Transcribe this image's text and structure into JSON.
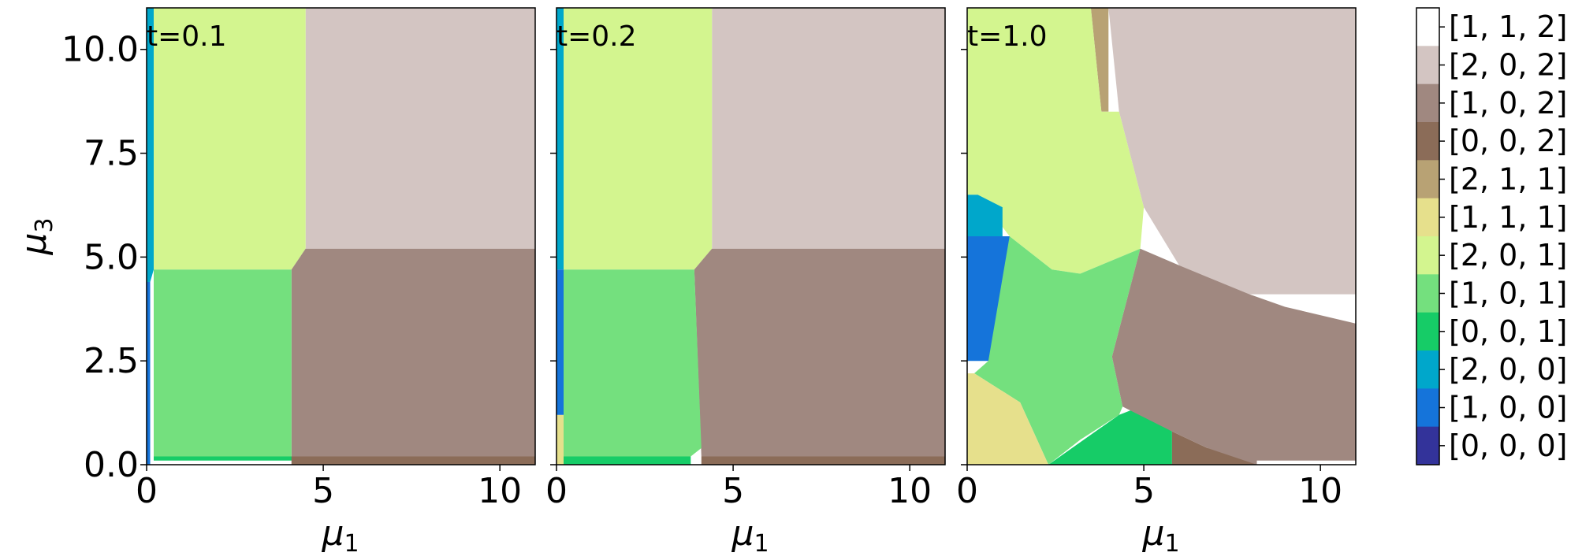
{
  "chart_data": {
    "type": "heatmap",
    "panels": [
      {
        "annotation": "t=0.1"
      },
      {
        "annotation": "t=0.2"
      },
      {
        "annotation": "t=1.0"
      }
    ],
    "xlabel": "μ",
    "xlabel_sub": "1",
    "ylabel": "μ",
    "ylabel_sub": "3",
    "xlim": [
      0,
      11
    ],
    "ylim": [
      0,
      11
    ],
    "xticks": [
      "0",
      "5",
      "10"
    ],
    "yticks": [
      "0.0",
      "2.5",
      "5.0",
      "7.5",
      "10.0"
    ],
    "legend": [
      {
        "label": "[1, 1, 2]",
        "color": "#ffffff"
      },
      {
        "label": "[2, 0, 2]",
        "color": "#d3c5c2"
      },
      {
        "label": "[1, 0, 2]",
        "color": "#a08880"
      },
      {
        "label": "[0, 0, 2]",
        "color": "#8b6c58"
      },
      {
        "label": "[2, 1, 1]",
        "color": "#b8a274"
      },
      {
        "label": "[1, 1, 1]",
        "color": "#e6e08c"
      },
      {
        "label": "[2, 0, 1]",
        "color": "#d3f58f"
      },
      {
        "label": "[1, 0, 1]",
        "color": "#74e07e"
      },
      {
        "label": "[0, 0, 1]",
        "color": "#16cc67"
      },
      {
        "label": "[2, 0, 0]",
        "color": "#00a7cb"
      },
      {
        "label": "[1, 0, 0]",
        "color": "#1574da"
      },
      {
        "label": "[0, 0, 0]",
        "color": "#33339a"
      }
    ],
    "regions": [
      [
        {
          "state": "[2, 0, 2]",
          "poly": [
            [
              4.5,
              11
            ],
            [
              11,
              11
            ],
            [
              11,
              5.2
            ],
            [
              4.5,
              5.2
            ]
          ]
        },
        {
          "state": "[2, 0, 1]",
          "poly": [
            [
              0.2,
              11
            ],
            [
              4.5,
              11
            ],
            [
              4.5,
              5.2
            ],
            [
              4.1,
              4.7
            ],
            [
              0.2,
              4.7
            ]
          ]
        },
        {
          "state": "[1, 0, 2]",
          "poly": [
            [
              4.5,
              5.2
            ],
            [
              11,
              5.2
            ],
            [
              11,
              0.2
            ],
            [
              4.1,
              0.2
            ],
            [
              4.1,
              4.7
            ]
          ]
        },
        {
          "state": "[1, 0, 1]",
          "poly": [
            [
              0.2,
              4.7
            ],
            [
              4.1,
              4.7
            ],
            [
              4.1,
              0.2
            ],
            [
              0.2,
              0.2
            ]
          ]
        },
        {
          "state": "[0, 0, 1]",
          "poly": [
            [
              0.2,
              0.2
            ],
            [
              4.4,
              0.2
            ],
            [
              4.4,
              0.1
            ],
            [
              0.2,
              0.1
            ]
          ]
        },
        {
          "state": "[0, 0, 2]",
          "poly": [
            [
              4.1,
              0.2
            ],
            [
              11,
              0.2
            ],
            [
              11,
              0
            ],
            [
              4.1,
              0
            ]
          ]
        },
        {
          "state": "[2, 0, 0]",
          "poly": [
            [
              0,
              11
            ],
            [
              0.2,
              11
            ],
            [
              0.2,
              4.7
            ],
            [
              0.1,
              4.4
            ],
            [
              0,
              4.4
            ]
          ]
        },
        {
          "state": "[1, 0, 0]",
          "poly": [
            [
              0,
              4.4
            ],
            [
              0.1,
              4.4
            ],
            [
              0.1,
              0
            ],
            [
              0,
              0
            ]
          ]
        }
      ],
      [
        {
          "state": "[2, 0, 2]",
          "poly": [
            [
              4.4,
              11
            ],
            [
              11,
              11
            ],
            [
              11,
              5.2
            ],
            [
              4.4,
              5.2
            ]
          ]
        },
        {
          "state": "[2, 0, 1]",
          "poly": [
            [
              0.2,
              11
            ],
            [
              4.4,
              11
            ],
            [
              4.4,
              5.2
            ],
            [
              3.9,
              4.7
            ],
            [
              0.2,
              4.7
            ]
          ]
        },
        {
          "state": "[1, 0, 2]",
          "poly": [
            [
              4.4,
              5.2
            ],
            [
              11,
              5.2
            ],
            [
              11,
              0.2
            ],
            [
              4.1,
              0.2
            ],
            [
              3.9,
              4.7
            ]
          ]
        },
        {
          "state": "[1, 0, 1]",
          "poly": [
            [
              0.2,
              4.7
            ],
            [
              3.9,
              4.7
            ],
            [
              4.1,
              0.4
            ],
            [
              3.8,
              0.2
            ],
            [
              0.2,
              0.2
            ]
          ]
        },
        {
          "state": "[1, 1, 1]",
          "poly": [
            [
              0,
              1.2
            ],
            [
              0.2,
              1.2
            ],
            [
              0.2,
              0
            ],
            [
              0,
              0
            ]
          ]
        },
        {
          "state": "[0, 0, 1]",
          "poly": [
            [
              0.2,
              0.2
            ],
            [
              3.8,
              0.2
            ],
            [
              3.8,
              0
            ],
            [
              0.2,
              0
            ]
          ]
        },
        {
          "state": "[0, 0, 2]",
          "poly": [
            [
              4.1,
              0.2
            ],
            [
              11,
              0.2
            ],
            [
              11,
              0
            ],
            [
              4.1,
              0
            ]
          ]
        },
        {
          "state": "[2, 0, 0]",
          "poly": [
            [
              0,
              11
            ],
            [
              0.2,
              11
            ],
            [
              0.2,
              4.7
            ],
            [
              0,
              4.7
            ]
          ]
        },
        {
          "state": "[1, 0, 0]",
          "poly": [
            [
              0,
              4.7
            ],
            [
              0.2,
              4.7
            ],
            [
              0.2,
              1.2
            ],
            [
              0,
              1.2
            ]
          ]
        }
      ],
      [
        {
          "state": "[2, 0, 2]",
          "poly": [
            [
              4,
              11
            ],
            [
              11,
              11
            ],
            [
              11,
              4.1
            ],
            [
              8,
              4.1
            ],
            [
              6,
              4.8
            ],
            [
              5,
              6.2
            ],
            [
              4.3,
              8.5
            ]
          ]
        },
        {
          "state": "[2, 1, 1]",
          "poly": [
            [
              3.5,
              11
            ],
            [
              4,
              11
            ],
            [
              4,
              8.5
            ],
            [
              3.8,
              8.5
            ]
          ]
        },
        {
          "state": "[2, 0, 1]",
          "poly": [
            [
              0,
              11
            ],
            [
              3.5,
              11
            ],
            [
              3.8,
              8.5
            ],
            [
              4.3,
              8.5
            ],
            [
              5,
              6.2
            ],
            [
              4.9,
              5.2
            ],
            [
              3.2,
              4.6
            ],
            [
              2.4,
              4.7
            ],
            [
              1.2,
              5.5
            ],
            [
              0.3,
              6.5
            ],
            [
              0,
              6.5
            ]
          ]
        },
        {
          "state": "[2, 0, 0]",
          "poly": [
            [
              0,
              6.5
            ],
            [
              0.3,
              6.5
            ],
            [
              1,
              6.2
            ],
            [
              1,
              5.5
            ],
            [
              0,
              5.5
            ]
          ]
        },
        {
          "state": "[1, 0, 0]",
          "poly": [
            [
              0,
              5.5
            ],
            [
              1.2,
              5.5
            ],
            [
              1.8,
              4.5
            ],
            [
              0.6,
              2.5
            ],
            [
              0,
              2.5
            ]
          ]
        },
        {
          "state": "[1, 0, 1]",
          "poly": [
            [
              0.6,
              2.5
            ],
            [
              1.2,
              5.5
            ],
            [
              2.4,
              4.7
            ],
            [
              3.2,
              4.6
            ],
            [
              4.9,
              5.2
            ],
            [
              4.1,
              2.6
            ],
            [
              4.4,
              1.4
            ],
            [
              4.3,
              1.2
            ],
            [
              3.2,
              0.6
            ],
            [
              2.3,
              0
            ],
            [
              1.5,
              1.5
            ],
            [
              0.2,
              2.2
            ]
          ]
        },
        {
          "state": "[1, 1, 1]",
          "poly": [
            [
              0,
              2.2
            ],
            [
              0.2,
              2.2
            ],
            [
              1.5,
              1.5
            ],
            [
              2.3,
              0
            ],
            [
              0,
              0
            ]
          ]
        },
        {
          "state": "[0, 0, 1]",
          "poly": [
            [
              2.3,
              0
            ],
            [
              4.3,
              1.2
            ],
            [
              4.9,
              1.4
            ],
            [
              5.8,
              0.8
            ],
            [
              5.8,
              0
            ],
            [
              2.3,
              0
            ]
          ]
        },
        {
          "state": "[0, 0, 2]",
          "poly": [
            [
              5.8,
              0.8
            ],
            [
              6.8,
              0.4
            ],
            [
              8.2,
              0.2
            ],
            [
              8.2,
              0
            ],
            [
              5.8,
              0
            ]
          ]
        },
        {
          "state": "[1, 0, 2]",
          "poly": [
            [
              4.9,
              5.2
            ],
            [
              6,
              4.8
            ],
            [
              8,
              4.1
            ],
            [
              11,
              3.4
            ],
            [
              11,
              0
            ],
            [
              8.2,
              0
            ],
            [
              6.8,
              0.4
            ],
            [
              5.8,
              0.8
            ],
            [
              4.4,
              1.4
            ],
            [
              4.1,
              2.6
            ]
          ]
        },
        {
          "state": "[1, 1, 2]",
          "poly": [
            [
              8,
              4.1
            ],
            [
              11,
              4.1
            ],
            [
              11,
              3.4
            ],
            [
              9,
              3.8
            ]
          ]
        },
        {
          "state": "[1, 1, 2]",
          "poly": [
            [
              8.2,
              0.1
            ],
            [
              11,
              0.1
            ],
            [
              11,
              0
            ],
            [
              8.2,
              0
            ]
          ]
        }
      ]
    ]
  }
}
